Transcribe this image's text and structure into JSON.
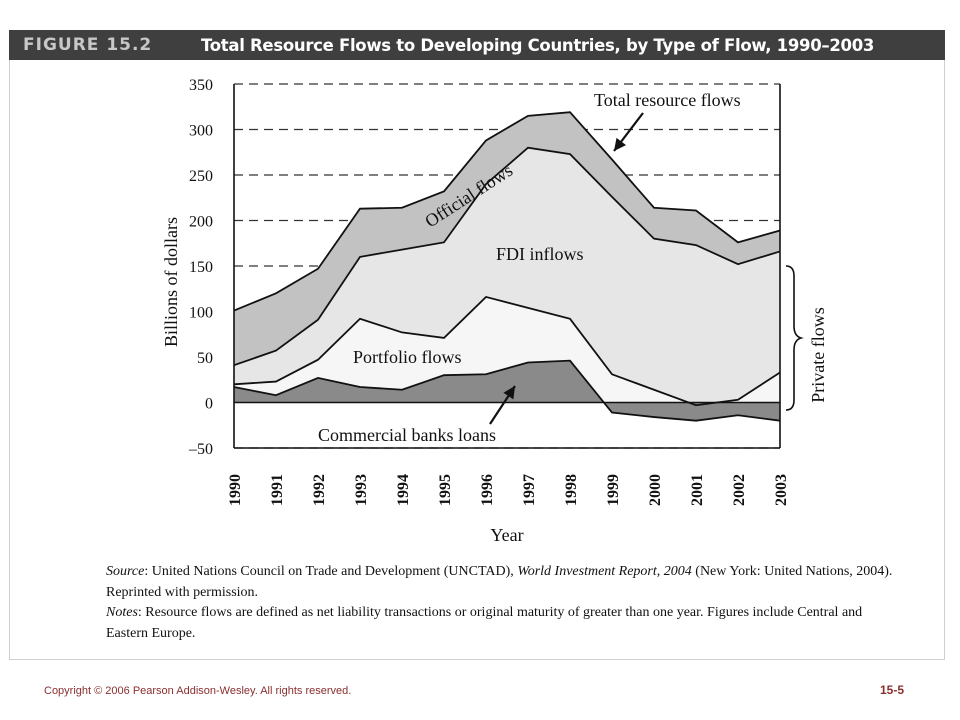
{
  "header": {
    "figure_label": "FIGURE 15.2",
    "title": "Total Resource Flows to Developing Countries, by Type of Flow, 1990–2003"
  },
  "chart_data": {
    "type": "area",
    "title": "Total Resource Flows to Developing Countries, by Type of Flow, 1990–2003",
    "xlabel": "Year",
    "ylabel": "Billions of dollars",
    "x": [
      1990,
      1991,
      1992,
      1993,
      1994,
      1995,
      1996,
      1997,
      1998,
      1999,
      2000,
      2001,
      2002,
      2003
    ],
    "x_tick_labels": [
      "1990",
      "1991",
      "1992",
      "1993",
      "1994",
      "1995",
      "1996",
      "1997",
      "1998",
      "1999",
      "2000",
      "2001",
      "2002",
      "2003"
    ],
    "yticks": [
      350,
      300,
      250,
      200,
      150,
      100,
      50,
      0,
      -50
    ],
    "y_tick_labels": [
      "350",
      "300",
      "250",
      "200",
      "150",
      "100",
      "50",
      "0",
      "–50"
    ],
    "ylim": [
      -50,
      350
    ],
    "grid": "dashed horizontal",
    "series": [
      {
        "key": "commercial_banks",
        "values": [
          17,
          8,
          27,
          17,
          14,
          30,
          31,
          44,
          46,
          -11,
          -16,
          -20,
          -14,
          -20
        ]
      },
      {
        "key": "portfolio_cumulative",
        "values": [
          20,
          23,
          47,
          92,
          77,
          71,
          116,
          104,
          92,
          31,
          14,
          -3,
          3,
          33
        ]
      },
      {
        "key": "fdi_cumulative_private",
        "values": [
          41,
          57,
          91,
          160,
          168,
          176,
          240,
          280,
          273,
          226,
          180,
          173,
          152,
          166
        ]
      },
      {
        "key": "total_resource_flows",
        "values": [
          101,
          120,
          147,
          213,
          214,
          232,
          288,
          315,
          319,
          267,
          214,
          211,
          176,
          189
        ]
      }
    ],
    "fill_colors": {
      "official": "#c2c2c2",
      "fdi": "#e6e6e6",
      "portfolio": "#f6f6f6",
      "banks": "#8a8a8a"
    },
    "annotations": {
      "total": "Total resource flows",
      "official": "Official flows",
      "fdi": "FDI inflows",
      "portfolio": "Portfolio flows",
      "banks": "Commercial banks loans",
      "private": "Private flows"
    }
  },
  "notes": {
    "source_label": "Source",
    "source_text": ": United Nations Council on Trade and Development (UNCTAD), ",
    "report_title": "World Investment Report, 2004",
    "source_rest": " (New York: United Nations, 2004). Reprinted with permission.",
    "notes_label": "Notes",
    "notes_text": ": Resource flows are defined as net liability transactions or original maturity of greater than one year. Figures include Central and Eastern Europe."
  },
  "footer": {
    "copyright": "Copyright © 2006 Pearson Addison-Wesley. All rights reserved.",
    "page_number": "15-5"
  }
}
